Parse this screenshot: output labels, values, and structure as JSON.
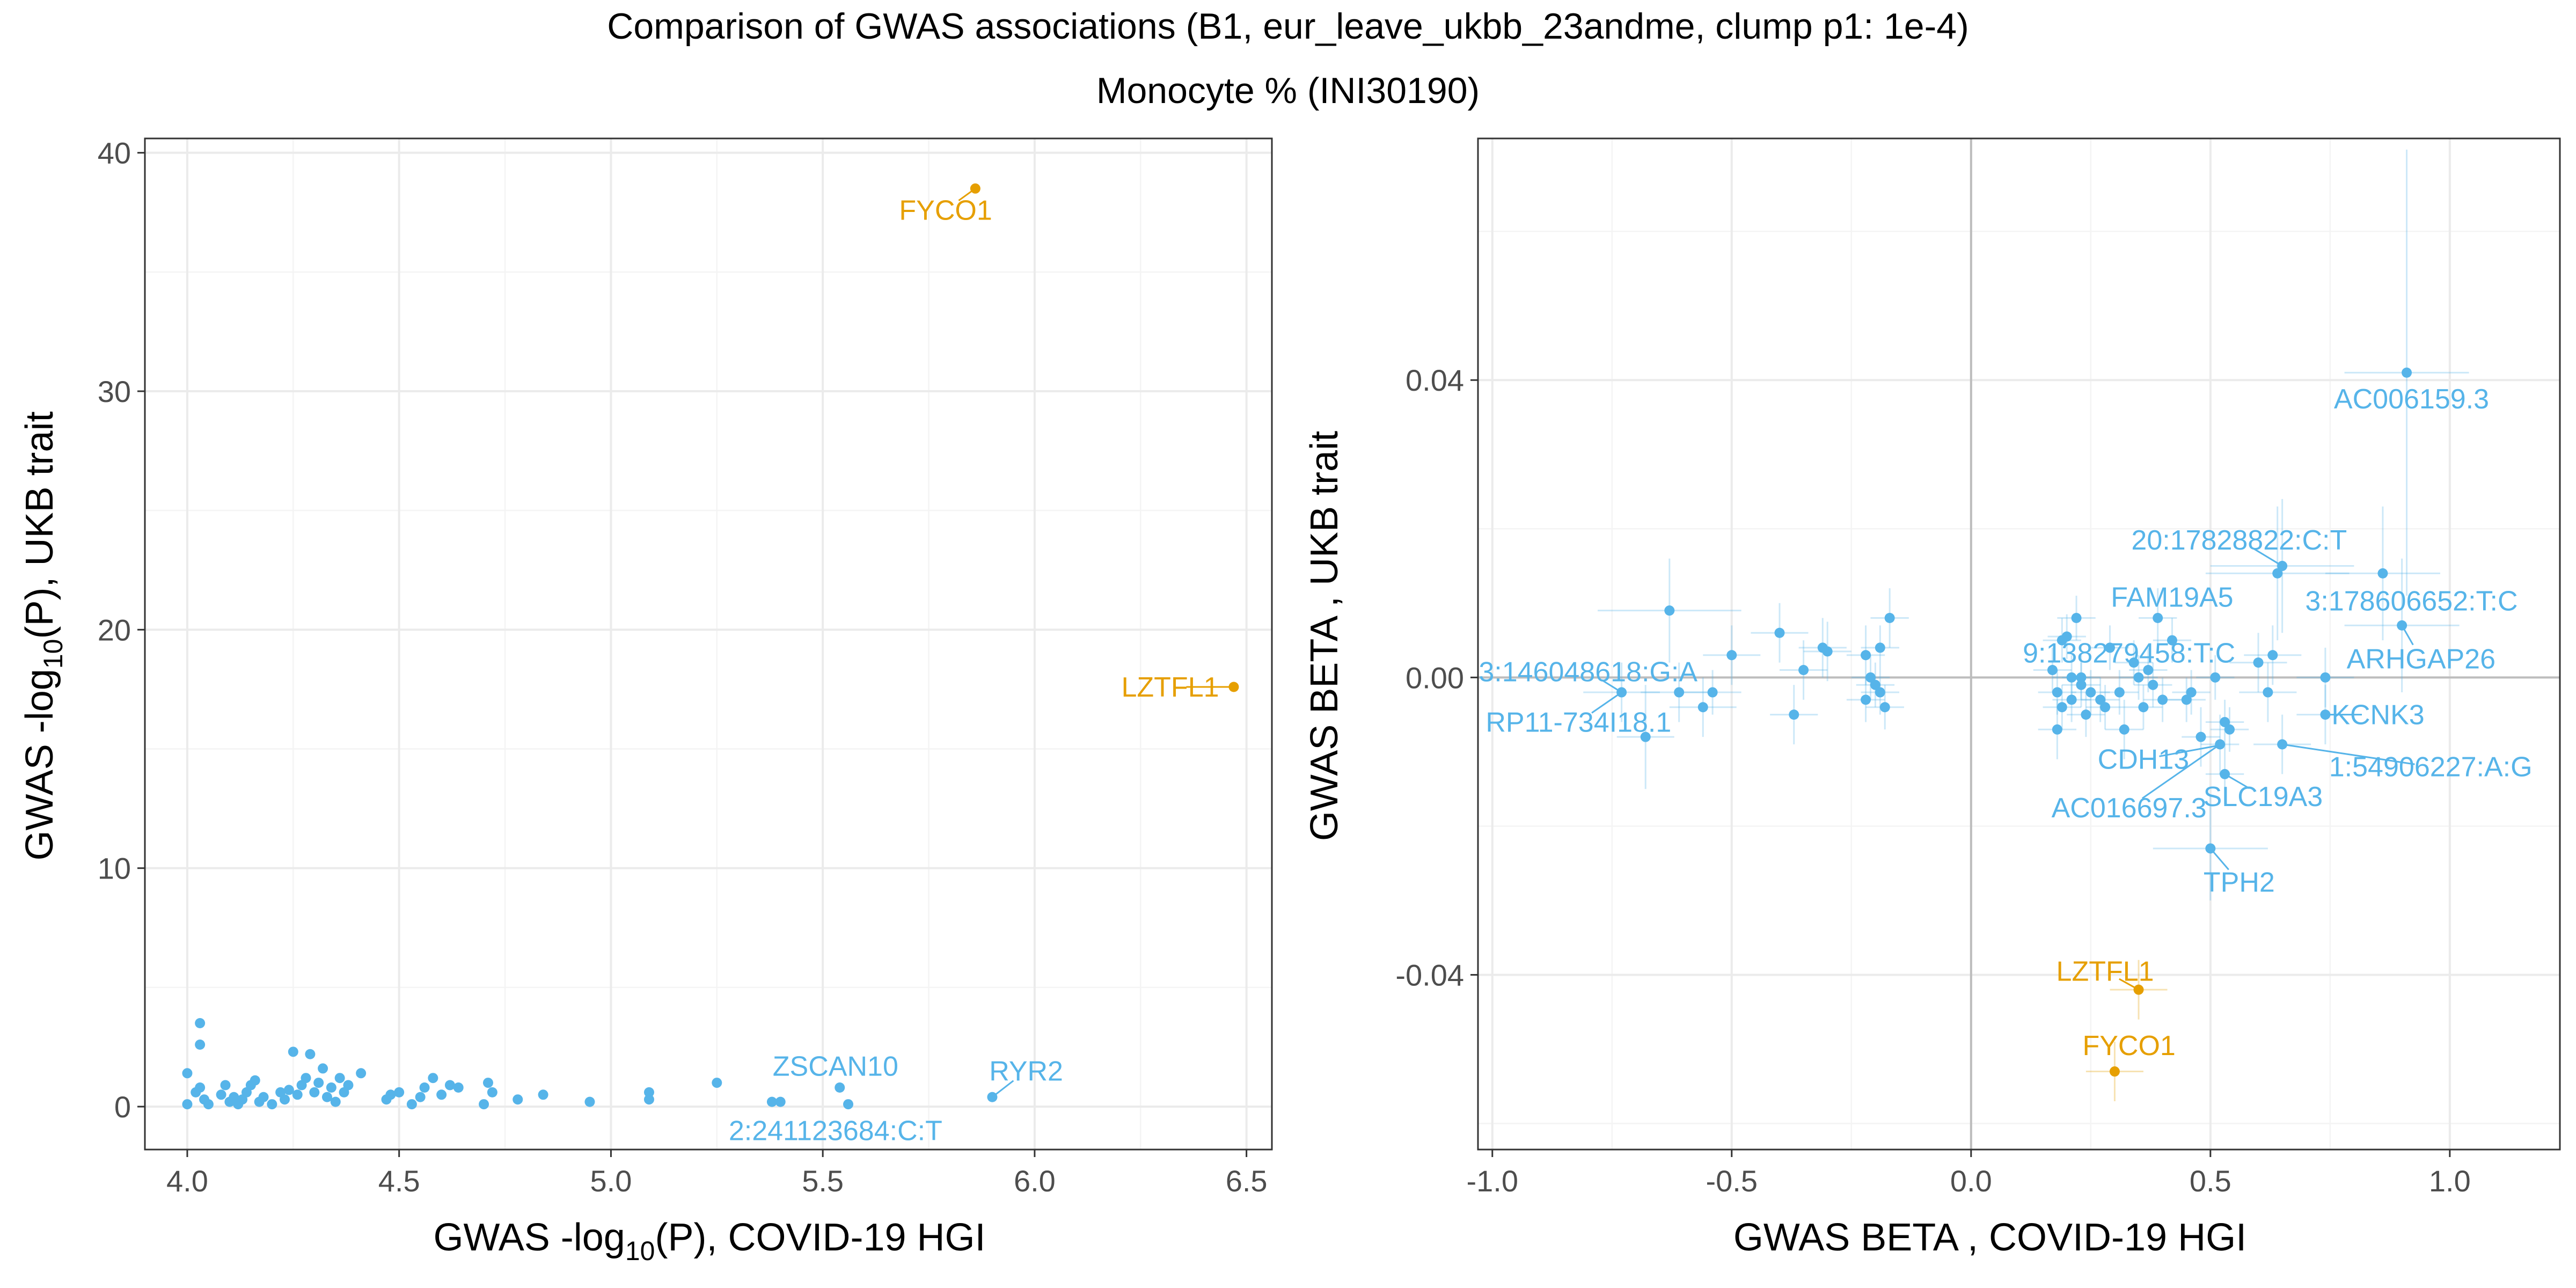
{
  "title": "Comparison of GWAS associations (B1, eur_leave_ukbb_23andme, clump p1: 1e-4)",
  "subtitle": "Monocyte % (INI30190)",
  "colors": {
    "default": "#56B4E9",
    "highlight": "#E69F00"
  },
  "chart_data": [
    {
      "type": "scatter",
      "xlabel_parts": [
        "GWAS -log",
        "10",
        "(P), COVID-19 HGI"
      ],
      "ylabel_parts": [
        "GWAS -log",
        "10",
        "(P), UKB trait"
      ],
      "xlim": [
        3.9,
        6.56
      ],
      "ylim": [
        -1.8,
        40.6
      ],
      "xticks": [
        4.0,
        4.5,
        5.0,
        5.5,
        6.0,
        6.5
      ],
      "xtick_labels": [
        "4.0",
        "4.5",
        "5.0",
        "5.5",
        "6.0",
        "6.5"
      ],
      "yticks": [
        0,
        10,
        20,
        30,
        40
      ],
      "ytick_labels": [
        "0",
        "10",
        "20",
        "30",
        "40"
      ],
      "points": [
        {
          "x": 4.0,
          "y": 1.4
        },
        {
          "x": 4.0,
          "y": 0.1
        },
        {
          "x": 4.02,
          "y": 0.6
        },
        {
          "x": 4.03,
          "y": 3.5
        },
        {
          "x": 4.03,
          "y": 2.6
        },
        {
          "x": 4.03,
          "y": 0.8
        },
        {
          "x": 4.04,
          "y": 0.3
        },
        {
          "x": 4.05,
          "y": 0.1
        },
        {
          "x": 4.08,
          "y": 0.5
        },
        {
          "x": 4.09,
          "y": 0.9
        },
        {
          "x": 4.1,
          "y": 0.2
        },
        {
          "x": 4.11,
          "y": 0.4
        },
        {
          "x": 4.12,
          "y": 0.1
        },
        {
          "x": 4.13,
          "y": 0.3
        },
        {
          "x": 4.14,
          "y": 0.6
        },
        {
          "x": 4.15,
          "y": 0.9
        },
        {
          "x": 4.16,
          "y": 1.1
        },
        {
          "x": 4.17,
          "y": 0.2
        },
        {
          "x": 4.18,
          "y": 0.4
        },
        {
          "x": 4.2,
          "y": 0.1
        },
        {
          "x": 4.22,
          "y": 0.6
        },
        {
          "x": 4.23,
          "y": 0.3
        },
        {
          "x": 4.24,
          "y": 0.7
        },
        {
          "x": 4.25,
          "y": 2.3
        },
        {
          "x": 4.26,
          "y": 0.5
        },
        {
          "x": 4.27,
          "y": 0.9
        },
        {
          "x": 4.28,
          "y": 1.2
        },
        {
          "x": 4.29,
          "y": 2.2
        },
        {
          "x": 4.3,
          "y": 0.6
        },
        {
          "x": 4.31,
          "y": 1.0
        },
        {
          "x": 4.32,
          "y": 1.6
        },
        {
          "x": 4.33,
          "y": 0.4
        },
        {
          "x": 4.34,
          "y": 0.8
        },
        {
          "x": 4.35,
          "y": 0.2
        },
        {
          "x": 4.36,
          "y": 1.2
        },
        {
          "x": 4.37,
          "y": 0.6
        },
        {
          "x": 4.38,
          "y": 0.9
        },
        {
          "x": 4.41,
          "y": 1.4
        },
        {
          "x": 4.47,
          "y": 0.3
        },
        {
          "x": 4.48,
          "y": 0.5
        },
        {
          "x": 4.5,
          "y": 0.6
        },
        {
          "x": 4.53,
          "y": 0.1
        },
        {
          "x": 4.55,
          "y": 0.4
        },
        {
          "x": 4.56,
          "y": 0.8
        },
        {
          "x": 4.58,
          "y": 1.2
        },
        {
          "x": 4.6,
          "y": 0.5
        },
        {
          "x": 4.62,
          "y": 0.9
        },
        {
          "x": 4.64,
          "y": 0.8
        },
        {
          "x": 4.7,
          "y": 0.1
        },
        {
          "x": 4.71,
          "y": 1.0
        },
        {
          "x": 4.72,
          "y": 0.6
        },
        {
          "x": 4.78,
          "y": 0.3
        },
        {
          "x": 4.84,
          "y": 0.5
        },
        {
          "x": 4.95,
          "y": 0.2
        },
        {
          "x": 5.09,
          "y": 0.3
        },
        {
          "x": 5.09,
          "y": 0.6
        },
        {
          "x": 5.25,
          "y": 1.0
        },
        {
          "x": 5.38,
          "y": 0.2
        },
        {
          "x": 5.4,
          "y": 0.2
        },
        {
          "x": 5.54,
          "y": 0.8
        },
        {
          "x": 5.56,
          "y": 0.1
        },
        {
          "x": 5.9,
          "y": 0.4
        },
        {
          "x": 5.86,
          "y": 38.5,
          "color": "#E69F00"
        },
        {
          "x": 6.47,
          "y": 17.6,
          "color": "#E69F00"
        }
      ],
      "labels": [
        {
          "text": "FYCO1",
          "x": 5.86,
          "y": 38.5,
          "lx": 5.79,
          "ly": 37.6,
          "color": "#E69F00"
        },
        {
          "text": "LZTFL1",
          "x": 6.47,
          "y": 17.6,
          "lx": 6.32,
          "ly": 17.6,
          "color": "#E69F00"
        },
        {
          "text": "ZSCAN10",
          "x": 5.54,
          "y": 0.8,
          "lx": 5.53,
          "ly": 1.7,
          "color": "#56B4E9"
        },
        {
          "text": "RYR2",
          "x": 5.9,
          "y": 0.4,
          "lx": 5.98,
          "ly": 1.5,
          "color": "#56B4E9"
        },
        {
          "text": "2:241123684:C:T",
          "x": 5.56,
          "y": 0.1,
          "lx": 5.53,
          "ly": -1.0,
          "color": "#56B4E9"
        }
      ]
    },
    {
      "type": "scatter",
      "xlabel": "GWAS BETA , COVID-19 HGI",
      "ylabel": "GWAS BETA , UKB trait",
      "xlim": [
        -1.03,
        1.23
      ],
      "ylim": [
        -0.0635,
        0.0725
      ],
      "xticks": [
        -1.0,
        -0.5,
        0.0,
        0.5,
        1.0
      ],
      "xtick_labels": [
        "-1.0",
        "-0.5",
        "0.0",
        "0.5",
        "1.0"
      ],
      "yticks": [
        -0.04,
        0.0,
        0.04
      ],
      "ytick_labels": [
        "-0.04",
        "0.00",
        "0.04"
      ],
      "reference_lines": {
        "x": 0,
        "y": 0
      },
      "points": [
        {
          "x": -0.73,
          "y": -0.002,
          "ex": 0.08,
          "ey": 0.004
        },
        {
          "x": -0.68,
          "y": -0.008,
          "ex": 0.06,
          "ey": 0.007
        },
        {
          "x": -0.63,
          "y": 0.009,
          "ex": 0.15,
          "ey": 0.007
        },
        {
          "x": -0.61,
          "y": -0.002,
          "ex": 0.08,
          "ey": 0.004
        },
        {
          "x": -0.56,
          "y": -0.004,
          "ex": 0.07,
          "ey": 0.004
        },
        {
          "x": -0.54,
          "y": -0.002,
          "ex": 0.06,
          "ey": 0.003
        },
        {
          "x": -0.5,
          "y": 0.003,
          "ex": 0.06,
          "ey": 0.004
        },
        {
          "x": -0.4,
          "y": 0.006,
          "ex": 0.06,
          "ey": 0.004
        },
        {
          "x": -0.37,
          "y": -0.005,
          "ex": 0.05,
          "ey": 0.004
        },
        {
          "x": -0.35,
          "y": 0.001,
          "ex": 0.05,
          "ey": 0.004
        },
        {
          "x": -0.31,
          "y": 0.004,
          "ex": 0.05,
          "ey": 0.004
        },
        {
          "x": -0.3,
          "y": 0.0035,
          "ex": 0.05,
          "ey": 0.004
        },
        {
          "x": -0.22,
          "y": 0.003,
          "ex": 0.04,
          "ey": 0.004
        },
        {
          "x": -0.22,
          "y": -0.003,
          "ex": 0.04,
          "ey": 0.003
        },
        {
          "x": -0.21,
          "y": 0.0,
          "ex": 0.04,
          "ey": 0.003
        },
        {
          "x": -0.2,
          "y": -0.001,
          "ex": 0.04,
          "ey": 0.003
        },
        {
          "x": -0.19,
          "y": -0.002,
          "ex": 0.04,
          "ey": 0.003
        },
        {
          "x": -0.19,
          "y": 0.004,
          "ex": 0.04,
          "ey": 0.003
        },
        {
          "x": -0.18,
          "y": -0.004,
          "ex": 0.04,
          "ey": 0.003
        },
        {
          "x": -0.17,
          "y": 0.008,
          "ex": 0.04,
          "ey": 0.004
        },
        {
          "x": 0.17,
          "y": 0.001,
          "ex": 0.04,
          "ey": 0.003
        },
        {
          "x": 0.18,
          "y": -0.002,
          "ex": 0.04,
          "ey": 0.003
        },
        {
          "x": 0.18,
          "y": -0.007,
          "ex": 0.04,
          "ey": 0.004
        },
        {
          "x": 0.19,
          "y": 0.005,
          "ex": 0.04,
          "ey": 0.003
        },
        {
          "x": 0.19,
          "y": -0.004,
          "ex": 0.04,
          "ey": 0.003
        },
        {
          "x": 0.2,
          "y": 0.0055,
          "ex": 0.04,
          "ey": 0.003
        },
        {
          "x": 0.21,
          "y": 0.0,
          "ex": 0.04,
          "ey": 0.003
        },
        {
          "x": 0.21,
          "y": -0.003,
          "ex": 0.04,
          "ey": 0.003
        },
        {
          "x": 0.22,
          "y": 0.008,
          "ex": 0.04,
          "ey": 0.003
        },
        {
          "x": 0.23,
          "y": -0.001,
          "ex": 0.04,
          "ey": 0.003
        },
        {
          "x": 0.23,
          "y": 0.0,
          "ex": 0.04,
          "ey": 0.003
        },
        {
          "x": 0.24,
          "y": -0.005,
          "ex": 0.04,
          "ey": 0.003
        },
        {
          "x": 0.25,
          "y": -0.002,
          "ex": 0.04,
          "ey": 0.003
        },
        {
          "x": 0.27,
          "y": -0.003,
          "ex": 0.04,
          "ey": 0.003
        },
        {
          "x": 0.28,
          "y": -0.004,
          "ex": 0.04,
          "ey": 0.003
        },
        {
          "x": 0.29,
          "y": 0.004,
          "ex": 0.04,
          "ey": 0.003
        },
        {
          "x": 0.31,
          "y": -0.002,
          "ex": 0.04,
          "ey": 0.003
        },
        {
          "x": 0.32,
          "y": -0.007,
          "ex": 0.04,
          "ey": 0.004
        },
        {
          "x": 0.34,
          "y": 0.002,
          "ex": 0.04,
          "ey": 0.003
        },
        {
          "x": 0.35,
          "y": 0.0,
          "ex": 0.04,
          "ey": 0.003
        },
        {
          "x": 0.36,
          "y": -0.004,
          "ex": 0.04,
          "ey": 0.003
        },
        {
          "x": 0.37,
          "y": 0.001,
          "ex": 0.04,
          "ey": 0.003
        },
        {
          "x": 0.38,
          "y": -0.001,
          "ex": 0.04,
          "ey": 0.003
        },
        {
          "x": 0.39,
          "y": 0.008,
          "ex": 0.04,
          "ey": 0.004
        },
        {
          "x": 0.4,
          "y": -0.003,
          "ex": 0.04,
          "ey": 0.003
        },
        {
          "x": 0.42,
          "y": 0.005,
          "ex": 0.04,
          "ey": 0.003
        },
        {
          "x": 0.45,
          "y": -0.003,
          "ex": 0.04,
          "ey": 0.003
        },
        {
          "x": 0.46,
          "y": -0.002,
          "ex": 0.04,
          "ey": 0.003
        },
        {
          "x": 0.48,
          "y": -0.008,
          "ex": 0.04,
          "ey": 0.004
        },
        {
          "x": 0.5,
          "y": -0.023,
          "ex": 0.12,
          "ey": 0.007
        },
        {
          "x": 0.51,
          "y": 0.0,
          "ex": 0.04,
          "ey": 0.003
        },
        {
          "x": 0.52,
          "y": -0.009,
          "ex": 0.04,
          "ey": 0.004
        },
        {
          "x": 0.53,
          "y": -0.006,
          "ex": 0.04,
          "ey": 0.003
        },
        {
          "x": 0.53,
          "y": -0.013,
          "ex": 0.04,
          "ey": 0.004
        },
        {
          "x": 0.54,
          "y": -0.007,
          "ex": 0.04,
          "ey": 0.003
        },
        {
          "x": 0.6,
          "y": 0.002,
          "ex": 0.06,
          "ey": 0.004
        },
        {
          "x": 0.62,
          "y": -0.002,
          "ex": 0.06,
          "ey": 0.004
        },
        {
          "x": 0.63,
          "y": 0.003,
          "ex": 0.06,
          "ey": 0.004
        },
        {
          "x": 0.64,
          "y": 0.014,
          "ex": 0.15,
          "ey": 0.009
        },
        {
          "x": 0.65,
          "y": 0.015,
          "ex": 0.15,
          "ey": 0.009
        },
        {
          "x": 0.65,
          "y": -0.009,
          "ex": 0.06,
          "ey": 0.004
        },
        {
          "x": 0.74,
          "y": 0.0,
          "ex": 0.06,
          "ey": 0.004
        },
        {
          "x": 0.74,
          "y": -0.005,
          "ex": 0.06,
          "ey": 0.004
        },
        {
          "x": 0.86,
          "y": 0.014,
          "ex": 0.12,
          "ey": 0.009
        },
        {
          "x": 0.9,
          "y": 0.007,
          "ex": 0.12,
          "ey": 0.009
        },
        {
          "x": 0.91,
          "y": 0.041,
          "ex": 0.13,
          "ey": 0.03
        },
        {
          "x": 0.35,
          "y": -0.042,
          "ex": 0.06,
          "ey": 0.004,
          "color": "#E69F00"
        },
        {
          "x": 0.3,
          "y": -0.053,
          "ex": 0.06,
          "ey": 0.004,
          "color": "#E69F00"
        }
      ],
      "labels": [
        {
          "text": "AC006159.3",
          "x": 0.91,
          "y": 0.041,
          "lx": 0.92,
          "ly": 0.0375,
          "color": "#56B4E9"
        },
        {
          "text": "20:17828822:C:T",
          "x": 0.65,
          "y": 0.015,
          "lx": 0.56,
          "ly": 0.0185,
          "color": "#56B4E9"
        },
        {
          "text": "FAM19A5",
          "x": 0.39,
          "y": 0.008,
          "lx": 0.42,
          "ly": 0.0108,
          "color": "#56B4E9"
        },
        {
          "text": "3:178606652:T:C",
          "x": 0.9,
          "y": 0.007,
          "lx": 0.92,
          "ly": 0.0103,
          "color": "#56B4E9"
        },
        {
          "text": "9:138279458:T:C",
          "x": 0.34,
          "y": 0.002,
          "lx": 0.33,
          "ly": 0.0033,
          "color": "#56B4E9"
        },
        {
          "text": "ARHGAP26",
          "x": 0.9,
          "y": 0.007,
          "lx": 0.94,
          "ly": 0.0025,
          "color": "#56B4E9"
        },
        {
          "text": "3:146048618:G:A",
          "x": -0.73,
          "y": -0.002,
          "lx": -0.8,
          "ly": 0.0008,
          "color": "#56B4E9"
        },
        {
          "text": "RP11-734I18.1",
          "x": -0.73,
          "y": -0.002,
          "lx": -0.82,
          "ly": -0.006,
          "color": "#56B4E9"
        },
        {
          "text": "KCNK3",
          "x": 0.74,
          "y": -0.005,
          "lx": 0.85,
          "ly": -0.005,
          "color": "#56B4E9"
        },
        {
          "text": "CDH13",
          "x": 0.53,
          "y": -0.009,
          "lx": 0.36,
          "ly": -0.011,
          "color": "#56B4E9"
        },
        {
          "text": "1:54906227:A:G",
          "x": 0.65,
          "y": -0.009,
          "lx": 0.96,
          "ly": -0.012,
          "color": "#56B4E9"
        },
        {
          "text": "SLC19A3",
          "x": 0.53,
          "y": -0.013,
          "lx": 0.61,
          "ly": -0.016,
          "color": "#56B4E9"
        },
        {
          "text": "AC016697.3",
          "x": 0.52,
          "y": -0.009,
          "lx": 0.33,
          "ly": -0.0175,
          "color": "#56B4E9"
        },
        {
          "text": "TPH2",
          "x": 0.5,
          "y": -0.023,
          "lx": 0.56,
          "ly": -0.0275,
          "color": "#56B4E9"
        },
        {
          "text": "LZTFL1",
          "x": 0.35,
          "y": -0.042,
          "lx": 0.28,
          "ly": -0.0395,
          "color": "#E69F00"
        },
        {
          "text": "FYCO1",
          "x": 0.3,
          "y": -0.053,
          "lx": 0.33,
          "ly": -0.0495,
          "color": "#E69F00"
        }
      ]
    }
  ]
}
